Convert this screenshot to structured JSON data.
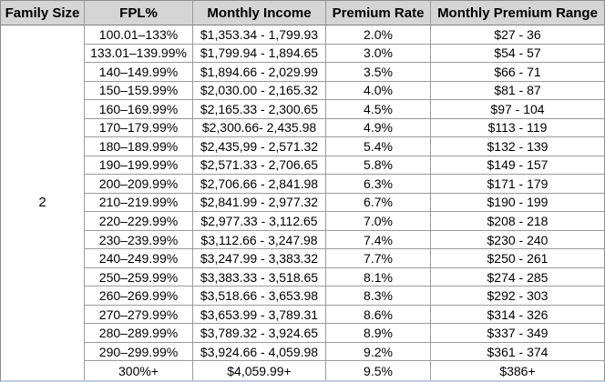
{
  "colors": {
    "header_bg": "#d5d5d5",
    "grid_line": "#9a9a9a",
    "outer_border": "#8c8c8c",
    "bottom_edge": "#b9cce4",
    "text": "#000000"
  },
  "table": {
    "headers": [
      "Family Size",
      "FPL%",
      "Monthly Income",
      "Premium Rate",
      "Monthly Premium Range"
    ],
    "family_size": "2",
    "rows": [
      {
        "fpl": "100.01–133%",
        "income": "$1,353.34 - 1,799.93",
        "rate": "2.0%",
        "premium": "$27 - 36"
      },
      {
        "fpl": "133.01–139.99%",
        "income": "$1,799.94 - 1,894.65",
        "rate": "3.0%",
        "premium": "$54 - 57"
      },
      {
        "fpl": "140–149.99%",
        "income": "$1,894.66 - 2,029.99",
        "rate": "3.5%",
        "premium": "$66 - 71"
      },
      {
        "fpl": "150–159.99%",
        "income": "$2,030.00 - 2,165.32",
        "rate": "4.0%",
        "premium": "$81 - 87"
      },
      {
        "fpl": "160–169.99%",
        "income": "$2,165.33 - 2,300.65",
        "rate": "4.5%",
        "premium": "$97 - 104"
      },
      {
        "fpl": "170–179.99%",
        "income": "$2,300.66- 2,435.98",
        "rate": "4.9%",
        "premium": "$113 - 119"
      },
      {
        "fpl": "180–189.99%",
        "income": "$2,435,99 - 2,571.32",
        "rate": "5.4%",
        "premium": "$132 - 139"
      },
      {
        "fpl": "190–199.99%",
        "income": "$2,571.33 - 2,706.65",
        "rate": "5.8%",
        "premium": "$149 - 157"
      },
      {
        "fpl": "200–209.99%",
        "income": "$2,706.66 - 2,841.98",
        "rate": "6.3%",
        "premium": "$171 - 179"
      },
      {
        "fpl": "210–219.99%",
        "income": "$2,841.99 - 2,977.32",
        "rate": "6.7%",
        "premium": "$190 - 199"
      },
      {
        "fpl": "220–229.99%",
        "income": "$2,977.33 - 3,112.65",
        "rate": "7.0%",
        "premium": "$208 - 218"
      },
      {
        "fpl": "230–239.99%",
        "income": "$3,112.66 - 3,247.98",
        "rate": "7.4%",
        "premium": "$230 - 240"
      },
      {
        "fpl": "240–249.99%",
        "income": "$3,247.99 - 3,383.32",
        "rate": "7.7%",
        "premium": "$250 - 261"
      },
      {
        "fpl": "250–259.99%",
        "income": "$3,383.33 - 3,518.65",
        "rate": "8.1%",
        "premium": "$274 - 285"
      },
      {
        "fpl": "260–269.99%",
        "income": "$3,518.66 - 3,653.98",
        "rate": "8.3%",
        "premium": "$292 - 303"
      },
      {
        "fpl": "270–279.99%",
        "income": "$3,653.99 - 3,789.31",
        "rate": "8.6%",
        "premium": "$314 - 326"
      },
      {
        "fpl": "280–289.99%",
        "income": "$3,789.32 - 3,924.65",
        "rate": "8.9%",
        "premium": "$337 - 349"
      },
      {
        "fpl": "290–299.99%",
        "income": "$3,924.66 - 4,059.98",
        "rate": "9.2%",
        "premium": "$361 - 374"
      },
      {
        "fpl": "300%+",
        "income": "$4,059.99+",
        "rate": "9.5%",
        "premium": "$386+"
      }
    ]
  }
}
